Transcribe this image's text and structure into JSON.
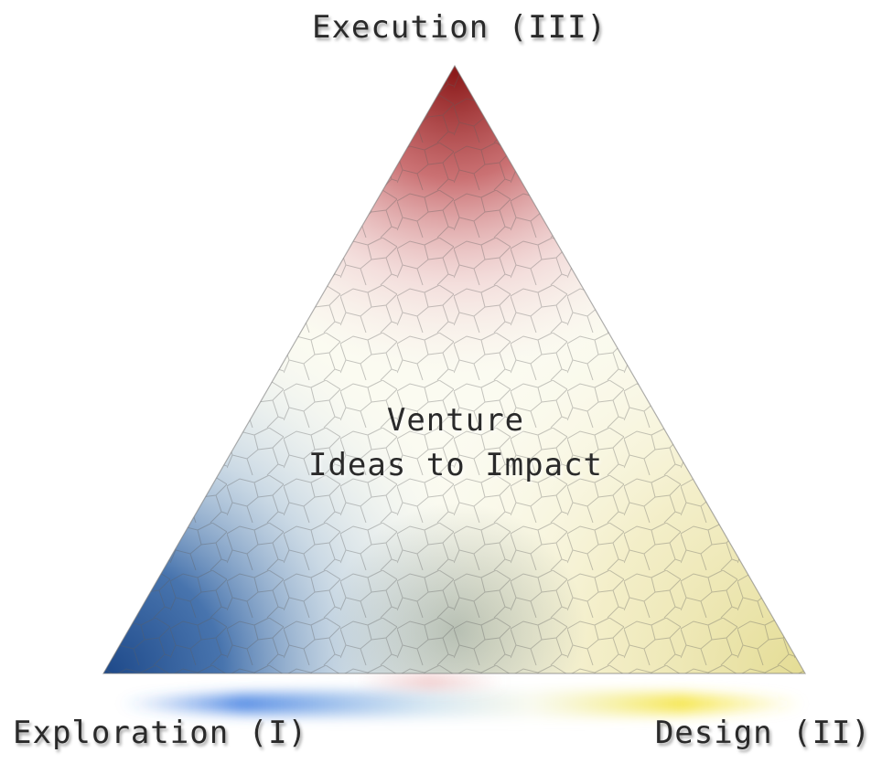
{
  "diagram": {
    "vertices": {
      "top": "Execution (III)",
      "left": "Exploration (I)",
      "right": "Design (II)"
    },
    "center": {
      "line1": "Venture",
      "line2": "Ideas to Impact"
    },
    "colors": {
      "top": "#8b1a1a",
      "left": "#1f4a8a",
      "right": "#e9e3a0",
      "center": "#fbfbf2"
    }
  }
}
